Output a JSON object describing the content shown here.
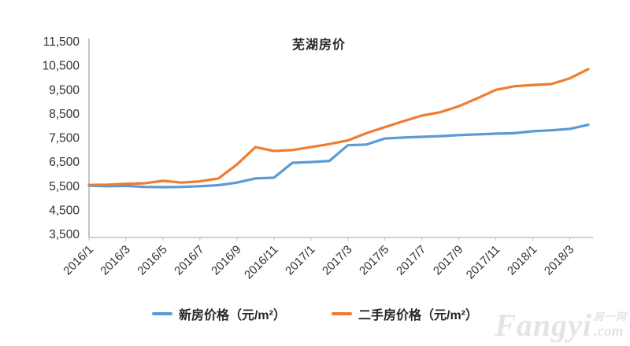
{
  "chart_data": {
    "type": "line",
    "title": "芜湖房价",
    "categories": [
      "2016/1",
      "2016/2",
      "2016/3",
      "2016/4",
      "2016/5",
      "2016/6",
      "2016/7",
      "2016/8",
      "2016/9",
      "2016/10",
      "2016/11",
      "2016/12",
      "2017/1",
      "2017/2",
      "2017/3",
      "2017/4",
      "2017/5",
      "2017/6",
      "2017/7",
      "2017/8",
      "2017/9",
      "2017/10",
      "2017/11",
      "2017/12",
      "2018/1",
      "2018/2",
      "2018/3",
      "2018/4"
    ],
    "x_tick_labels": [
      "2016/1",
      "2016/3",
      "2016/5",
      "2016/7",
      "2016/9",
      "2016/11",
      "2017/1",
      "2017/3",
      "2017/5",
      "2017/7",
      "2017/9",
      "2017/11",
      "2018/1",
      "2018/3"
    ],
    "y_ticks": [
      3500,
      4500,
      5500,
      6500,
      7500,
      8500,
      9500,
      10500,
      11500
    ],
    "ylim": [
      3500,
      11500
    ],
    "grid": false,
    "legend_position": "bottom",
    "xlabel": "",
    "ylabel": "",
    "series": [
      {
        "name": "新房价格（元/m²）",
        "color": "#5B9BD5",
        "values": [
          5520,
          5500,
          5510,
          5470,
          5460,
          5470,
          5500,
          5540,
          5650,
          5820,
          5850,
          6470,
          6500,
          6550,
          7200,
          7230,
          7480,
          7520,
          7550,
          7580,
          7620,
          7650,
          7680,
          7700,
          7780,
          7820,
          7880,
          8050
        ]
      },
      {
        "name": "二手房价格（元/m²）",
        "color": "#ED7D31",
        "values": [
          5550,
          5560,
          5600,
          5620,
          5720,
          5650,
          5700,
          5820,
          6400,
          7120,
          6960,
          7000,
          7120,
          7250,
          7400,
          7700,
          7950,
          8200,
          8430,
          8570,
          8820,
          9150,
          9500,
          9650,
          9700,
          9740,
          9980,
          10360
        ]
      }
    ]
  },
  "watermark": {
    "brand": "Fangyi",
    "cjk": "房一网",
    "suffix": ".com"
  }
}
